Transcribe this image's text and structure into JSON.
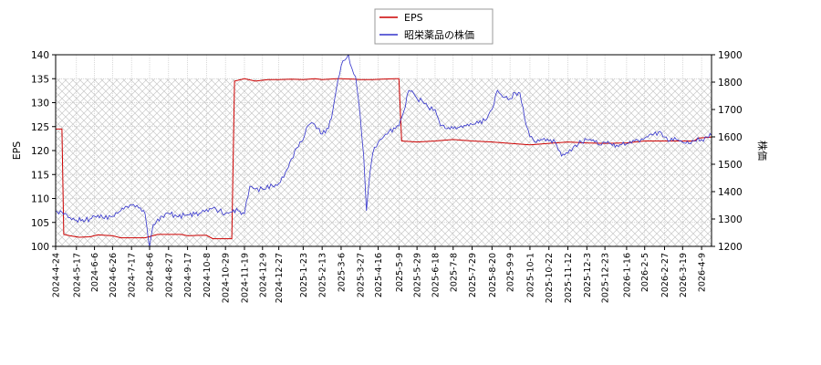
{
  "chart_data": {
    "type": "line",
    "title": "",
    "xlabel": "",
    "x_ticks": [
      "2024-4-24",
      "2024-5-17",
      "2024-6-6",
      "2024-6-26",
      "2024-7-17",
      "2024-8-6",
      "2024-8-27",
      "2024-9-17",
      "2024-10-8",
      "2024-10-29",
      "2024-11-19",
      "2024-12-9",
      "2024-12-27",
      "2025-1-23",
      "2025-2-13",
      "2025-3-6",
      "2025-3-27",
      "2025-4-16",
      "2025-5-9",
      "2025-5-29",
      "2025-6-18",
      "2025-7-8",
      "2025-7-29",
      "2025-8-20",
      "2025-9-9",
      "2025-10-1",
      "2025-10-22",
      "2025-11-12",
      "2025-12-3",
      "2025-12-23",
      "2026-1-16",
      "2026-2-5",
      "2026-2-27",
      "2026-3-19",
      "2026-4-9"
    ],
    "y_left": {
      "label": "EPS",
      "range": [
        100,
        140
      ],
      "ticks": [
        100,
        105,
        110,
        115,
        120,
        125,
        130,
        135,
        140
      ]
    },
    "y_right": {
      "label": "株価",
      "range": [
        1200,
        1900
      ],
      "ticks": [
        1200,
        1300,
        1400,
        1500,
        1600,
        1700,
        1800,
        1900
      ]
    },
    "hatched_band_left_range": [
      100,
      135
    ],
    "grid": true,
    "legend_position": "top-center",
    "series": [
      {
        "name": "EPS",
        "axis": "left",
        "color": "#cc0000",
        "points": [
          [
            "2024-4-24",
            124.5
          ],
          [
            "2024-5-1",
            124.5
          ],
          [
            "2024-5-3",
            102.5
          ],
          [
            "2024-5-10",
            102.2
          ],
          [
            "2024-5-20",
            101.9
          ],
          [
            "2024-6-1",
            102.0
          ],
          [
            "2024-6-10",
            102.4
          ],
          [
            "2024-6-26",
            102.2
          ],
          [
            "2024-7-5",
            101.8
          ],
          [
            "2024-7-17",
            101.8
          ],
          [
            "2024-8-1",
            101.8
          ],
          [
            "2024-8-15",
            102.5
          ],
          [
            "2024-8-27",
            102.5
          ],
          [
            "2024-9-10",
            102.5
          ],
          [
            "2024-9-17",
            102.2
          ],
          [
            "2024-9-30",
            102.3
          ],
          [
            "2024-10-8",
            102.3
          ],
          [
            "2024-10-15",
            101.6
          ],
          [
            "2024-10-29",
            101.6
          ],
          [
            "2024-11-5",
            101.6
          ],
          [
            "2024-11-8",
            134.5
          ],
          [
            "2024-11-19",
            135.0
          ],
          [
            "2024-12-1",
            134.5
          ],
          [
            "2024-12-15",
            134.8
          ],
          [
            "2024-12-27",
            134.8
          ],
          [
            "2025-1-10",
            134.9
          ],
          [
            "2025-1-23",
            134.8
          ],
          [
            "2025-2-5",
            135.0
          ],
          [
            "2025-2-13",
            134.8
          ],
          [
            "2025-3-1",
            135.0
          ],
          [
            "2025-3-6",
            135.0
          ],
          [
            "2025-3-20",
            134.9
          ],
          [
            "2025-3-27",
            134.8
          ],
          [
            "2025-4-10",
            134.8
          ],
          [
            "2025-4-20",
            134.9
          ],
          [
            "2025-5-5",
            135.0
          ],
          [
            "2025-5-9",
            135.0
          ],
          [
            "2025-5-12",
            122.0
          ],
          [
            "2025-5-29",
            121.8
          ],
          [
            "2025-6-18",
            122.0
          ],
          [
            "2025-7-8",
            122.3
          ],
          [
            "2025-7-29",
            122.0
          ],
          [
            "2025-8-20",
            121.8
          ],
          [
            "2025-9-9",
            121.5
          ],
          [
            "2025-10-1",
            121.2
          ],
          [
            "2025-10-22",
            121.5
          ],
          [
            "2025-11-12",
            121.8
          ],
          [
            "2025-12-3",
            121.6
          ],
          [
            "2025-12-23",
            121.5
          ],
          [
            "2026-1-16",
            121.6
          ],
          [
            "2026-2-5",
            122.0
          ],
          [
            "2026-2-27",
            122.0
          ],
          [
            "2026-3-19",
            122.0
          ],
          [
            "2026-4-1",
            122.0
          ],
          [
            "2026-4-5",
            122.6
          ],
          [
            "2026-4-20",
            122.8
          ]
        ]
      },
      {
        "name": "昭栄薬品の株価",
        "axis": "right",
        "color": "#3333cc",
        "points": [
          [
            "2024-4-24",
            1330
          ],
          [
            "2024-5-1",
            1325
          ],
          [
            "2024-5-10",
            1305
          ],
          [
            "2024-5-17",
            1295
          ],
          [
            "2024-6-1",
            1300
          ],
          [
            "2024-6-6",
            1310
          ],
          [
            "2024-6-15",
            1305
          ],
          [
            "2024-6-26",
            1310
          ],
          [
            "2024-7-5",
            1330
          ],
          [
            "2024-7-10",
            1345
          ],
          [
            "2024-7-17",
            1350
          ],
          [
            "2024-7-25",
            1340
          ],
          [
            "2024-8-1",
            1320
          ],
          [
            "2024-8-5",
            1215
          ],
          [
            "2024-8-6",
            1200
          ],
          [
            "2024-8-10",
            1280
          ],
          [
            "2024-8-20",
            1310
          ],
          [
            "2024-8-27",
            1320
          ],
          [
            "2024-9-5",
            1310
          ],
          [
            "2024-9-17",
            1315
          ],
          [
            "2024-9-30",
            1320
          ],
          [
            "2024-10-8",
            1335
          ],
          [
            "2024-10-15",
            1340
          ],
          [
            "2024-10-22",
            1330
          ],
          [
            "2024-10-29",
            1320
          ],
          [
            "2024-11-5",
            1325
          ],
          [
            "2024-11-12",
            1330
          ],
          [
            "2024-11-19",
            1320
          ],
          [
            "2024-11-25",
            1420
          ],
          [
            "2024-12-1",
            1410
          ],
          [
            "2024-12-9",
            1410
          ],
          [
            "2024-12-20",
            1420
          ],
          [
            "2024-12-27",
            1430
          ],
          [
            "2025-1-5",
            1480
          ],
          [
            "2025-1-10",
            1520
          ],
          [
            "2025-1-16",
            1560
          ],
          [
            "2025-1-23",
            1590
          ],
          [
            "2025-1-28",
            1640
          ],
          [
            "2025-2-3",
            1650
          ],
          [
            "2025-2-8",
            1630
          ],
          [
            "2025-2-13",
            1610
          ],
          [
            "2025-2-20",
            1630
          ],
          [
            "2025-2-25",
            1700
          ],
          [
            "2025-3-1",
            1780
          ],
          [
            "2025-3-6",
            1860
          ],
          [
            "2025-3-10",
            1880
          ],
          [
            "2025-3-14",
            1900
          ],
          [
            "2025-3-18",
            1850
          ],
          [
            "2025-3-22",
            1820
          ],
          [
            "2025-3-25",
            1740
          ],
          [
            "2025-3-27",
            1680
          ],
          [
            "2025-3-31",
            1530
          ],
          [
            "2025-4-3",
            1330
          ],
          [
            "2025-4-7",
            1470
          ],
          [
            "2025-4-10",
            1540
          ],
          [
            "2025-4-16",
            1580
          ],
          [
            "2025-4-22",
            1600
          ],
          [
            "2025-4-28",
            1620
          ],
          [
            "2025-5-5",
            1630
          ],
          [
            "2025-5-9",
            1640
          ],
          [
            "2025-5-14",
            1690
          ],
          [
            "2025-5-20",
            1770
          ],
          [
            "2025-5-25",
            1760
          ],
          [
            "2025-5-29",
            1740
          ],
          [
            "2025-6-4",
            1730
          ],
          [
            "2025-6-10",
            1710
          ],
          [
            "2025-6-18",
            1700
          ],
          [
            "2025-6-24",
            1640
          ],
          [
            "2025-7-1",
            1630
          ],
          [
            "2025-7-8",
            1630
          ],
          [
            "2025-7-15",
            1635
          ],
          [
            "2025-7-22",
            1640
          ],
          [
            "2025-7-29",
            1645
          ],
          [
            "2025-8-5",
            1650
          ],
          [
            "2025-8-12",
            1660
          ],
          [
            "2025-8-20",
            1700
          ],
          [
            "2025-8-26",
            1770
          ],
          [
            "2025-9-1",
            1745
          ],
          [
            "2025-9-9",
            1740
          ],
          [
            "2025-9-15",
            1760
          ],
          [
            "2025-9-20",
            1760
          ],
          [
            "2025-9-25",
            1670
          ],
          [
            "2025-10-1",
            1600
          ],
          [
            "2025-10-8",
            1580
          ],
          [
            "2025-10-15",
            1590
          ],
          [
            "2025-10-22",
            1585
          ],
          [
            "2025-10-29",
            1580
          ],
          [
            "2025-11-5",
            1530
          ],
          [
            "2025-11-12",
            1540
          ],
          [
            "2025-11-20",
            1570
          ],
          [
            "2025-11-27",
            1580
          ],
          [
            "2025-12-3",
            1590
          ],
          [
            "2025-12-10",
            1590
          ],
          [
            "2025-12-17",
            1570
          ],
          [
            "2025-12-23",
            1580
          ],
          [
            "2026-1-5",
            1570
          ],
          [
            "2026-1-16",
            1575
          ],
          [
            "2026-1-25",
            1585
          ],
          [
            "2026-2-5",
            1595
          ],
          [
            "2026-2-15",
            1610
          ],
          [
            "2026-2-22",
            1620
          ],
          [
            "2026-2-27",
            1600
          ],
          [
            "2026-3-5",
            1585
          ],
          [
            "2026-3-12",
            1590
          ],
          [
            "2026-3-19",
            1580
          ],
          [
            "2026-3-26",
            1575
          ],
          [
            "2026-4-1",
            1585
          ],
          [
            "2026-4-9",
            1590
          ],
          [
            "2026-4-15",
            1600
          ],
          [
            "2026-4-20",
            1605
          ]
        ]
      }
    ]
  }
}
